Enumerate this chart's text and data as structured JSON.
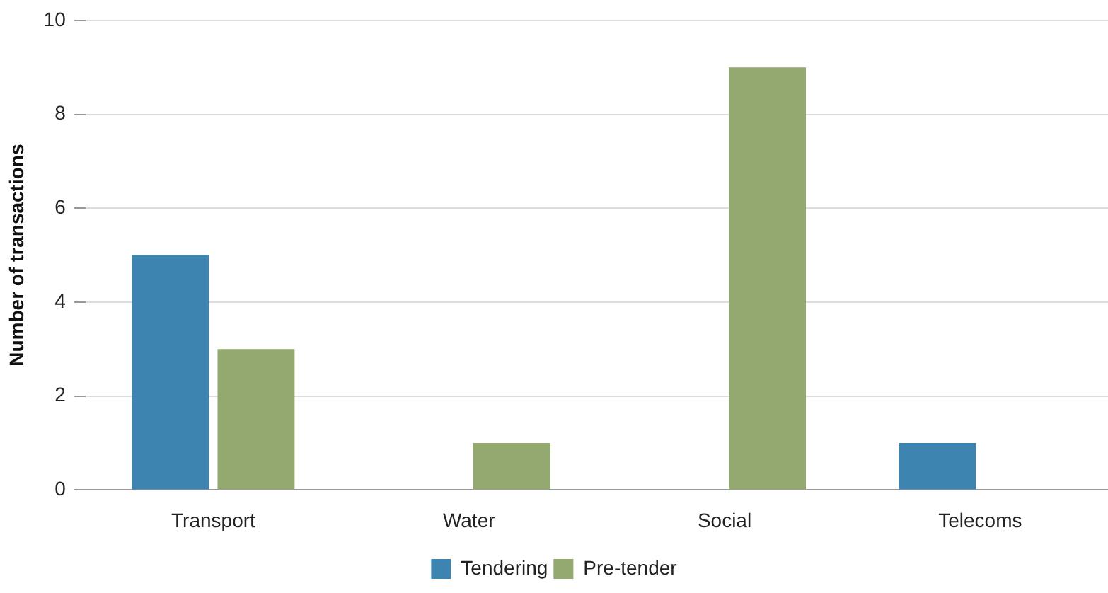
{
  "chart_data": {
    "type": "bar",
    "ylabel": "Number of transactions",
    "categories": [
      "Transport",
      "Water",
      "Social",
      "Telecoms"
    ],
    "series": [
      {
        "name": "Tendering",
        "color": "#3d84b0",
        "values": [
          5,
          0,
          0,
          1
        ]
      },
      {
        "name": "Pre-tender",
        "color": "#93a96f",
        "values": [
          3,
          1,
          9,
          0
        ]
      }
    ],
    "ylim": [
      0,
      10
    ],
    "yticks": [
      0,
      2,
      4,
      6,
      8,
      10
    ],
    "grid": "y",
    "legend": "bottom"
  }
}
